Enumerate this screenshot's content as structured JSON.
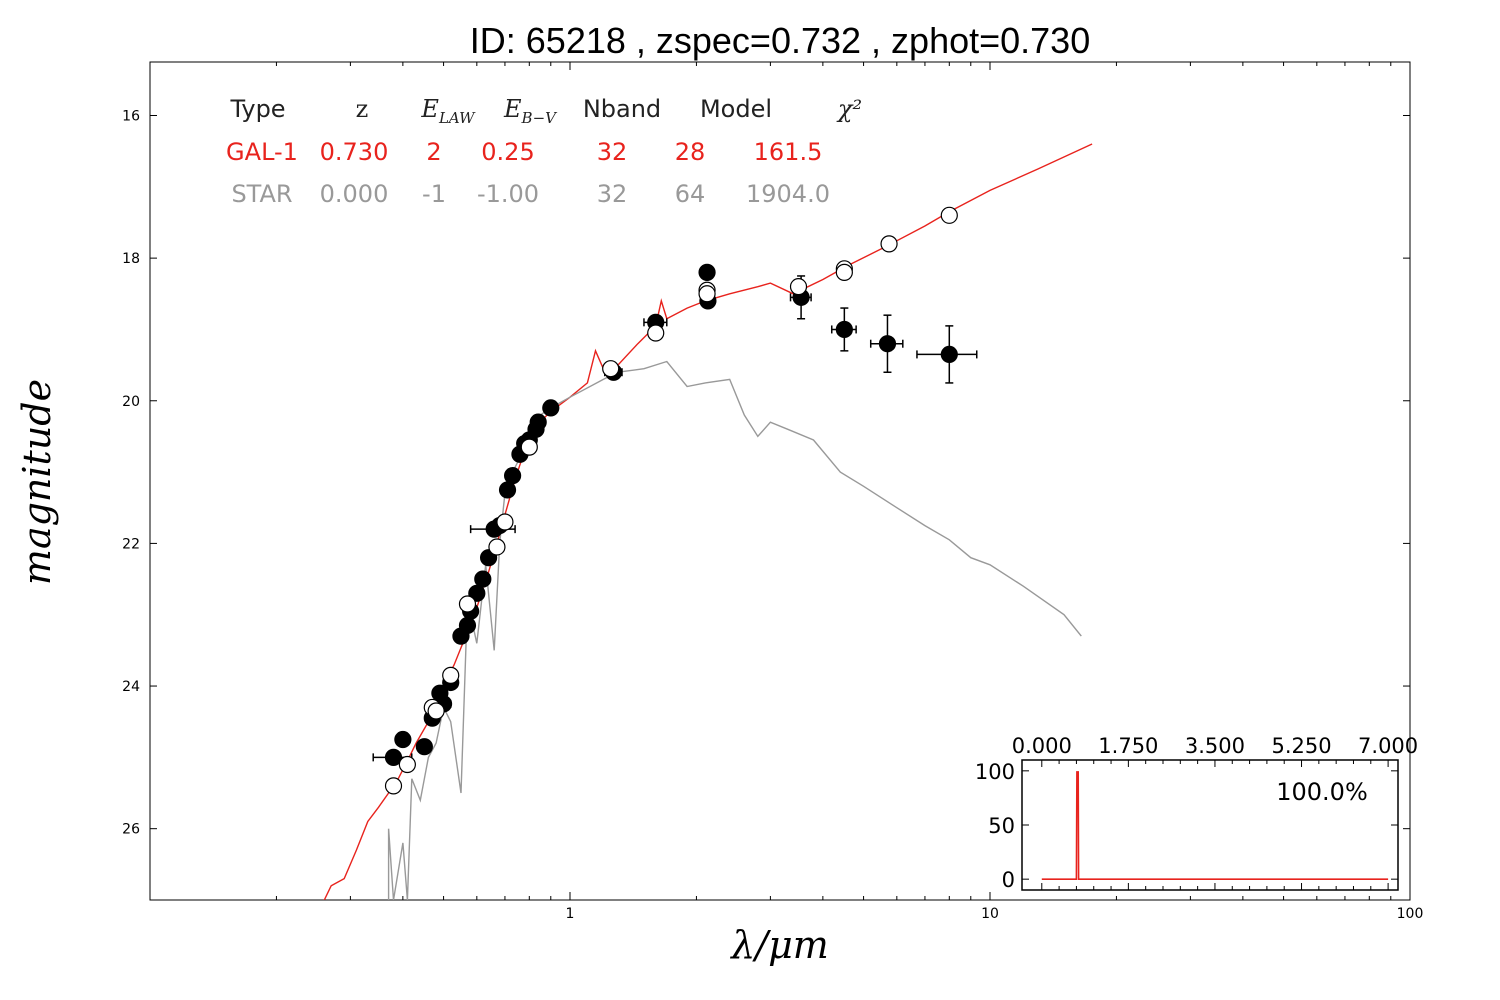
{
  "chart_data": {
    "title": "ID:  65218 , zspec=0.732 , zphot=0.730",
    "type": "scatter",
    "xlabel": "λ/μm",
    "ylabel": "magnitude",
    "x_scale": "log",
    "xlim": [
      0.1,
      100
    ],
    "ylim": [
      27,
      15.25
    ],
    "x_ticks": [
      {
        "value": 1,
        "label": "1"
      },
      {
        "value": 10,
        "label": "10"
      },
      {
        "value": 100,
        "label": "100"
      }
    ],
    "y_ticks": [
      {
        "value": 16,
        "label": "16"
      },
      {
        "value": 18,
        "label": "18"
      },
      {
        "value": 20,
        "label": "20"
      },
      {
        "value": 22,
        "label": "22"
      },
      {
        "value": 24,
        "label": "24"
      },
      {
        "value": 26,
        "label": "26"
      }
    ],
    "fit_table": {
      "headers": [
        "Type",
        "z",
        "E_LAW",
        "E_B−V",
        "Nband",
        "Model",
        "χ²"
      ],
      "rows": [
        {
          "cells": [
            "GAL-1",
            "0.730",
            "2",
            "0.25",
            "32",
            "28",
            "161.5"
          ],
          "color": "#e8231d"
        },
        {
          "cells": [
            "STAR",
            "0.000",
            "-1",
            "-1.00",
            "32",
            "64",
            "1904.0"
          ],
          "color": "#999999"
        }
      ]
    },
    "series": [
      {
        "name": "GAL-1",
        "kind": "line",
        "color": "#e8231d",
        "points": [
          [
            0.26,
            27.0
          ],
          [
            0.27,
            26.8
          ],
          [
            0.29,
            26.7
          ],
          [
            0.31,
            26.3
          ],
          [
            0.33,
            25.9
          ],
          [
            0.35,
            25.7
          ],
          [
            0.37,
            25.5
          ],
          [
            0.39,
            25.3
          ],
          [
            0.41,
            25.05
          ],
          [
            0.43,
            24.8
          ],
          [
            0.46,
            24.5
          ],
          [
            0.48,
            24.2
          ],
          [
            0.5,
            24.0
          ],
          [
            0.53,
            23.7
          ],
          [
            0.56,
            23.35
          ],
          [
            0.6,
            22.9
          ],
          [
            0.64,
            22.4
          ],
          [
            0.67,
            22.0
          ],
          [
            0.7,
            21.6
          ],
          [
            0.74,
            21.1
          ],
          [
            0.78,
            20.7
          ],
          [
            0.83,
            20.35
          ],
          [
            0.9,
            20.15
          ],
          [
            1.0,
            19.95
          ],
          [
            1.1,
            19.75
          ],
          [
            1.15,
            19.3
          ],
          [
            1.2,
            19.55
          ],
          [
            1.3,
            19.5
          ],
          [
            1.45,
            19.2
          ],
          [
            1.6,
            18.95
          ],
          [
            1.65,
            18.6
          ],
          [
            1.7,
            18.85
          ],
          [
            1.9,
            18.7
          ],
          [
            2.1,
            18.6
          ],
          [
            2.4,
            18.5
          ],
          [
            2.8,
            18.4
          ],
          [
            3.0,
            18.35
          ],
          [
            3.4,
            18.5
          ],
          [
            4.0,
            18.3
          ],
          [
            4.6,
            18.1
          ],
          [
            5.6,
            17.85
          ],
          [
            7.0,
            17.55
          ],
          [
            8.0,
            17.35
          ],
          [
            10,
            17.05
          ],
          [
            13,
            16.75
          ],
          [
            17.5,
            16.4
          ]
        ]
      },
      {
        "name": "STAR",
        "kind": "line",
        "color": "#999999",
        "points": [
          [
            0.37,
            27.0
          ],
          [
            0.37,
            26.0
          ],
          [
            0.38,
            27.0
          ],
          [
            0.4,
            26.2
          ],
          [
            0.41,
            27.0
          ],
          [
            0.42,
            25.3
          ],
          [
            0.44,
            25.6
          ],
          [
            0.46,
            25.0
          ],
          [
            0.48,
            24.8
          ],
          [
            0.5,
            24.3
          ],
          [
            0.52,
            24.5
          ],
          [
            0.55,
            25.5
          ],
          [
            0.57,
            22.8
          ],
          [
            0.6,
            23.4
          ],
          [
            0.63,
            22.3
          ],
          [
            0.66,
            23.5
          ],
          [
            0.68,
            22.0
          ],
          [
            0.7,
            21.3
          ],
          [
            0.73,
            21.0
          ],
          [
            0.76,
            20.8
          ],
          [
            0.8,
            20.6
          ],
          [
            0.85,
            20.2
          ],
          [
            0.9,
            20.1
          ],
          [
            1.0,
            19.95
          ],
          [
            1.2,
            19.7
          ],
          [
            1.3,
            19.6
          ],
          [
            1.5,
            19.55
          ],
          [
            1.7,
            19.45
          ],
          [
            1.9,
            19.8
          ],
          [
            2.1,
            19.75
          ],
          [
            2.4,
            19.7
          ],
          [
            2.6,
            20.2
          ],
          [
            2.8,
            20.5
          ],
          [
            3.0,
            20.3
          ],
          [
            3.3,
            20.4
          ],
          [
            3.8,
            20.55
          ],
          [
            4.4,
            21.0
          ],
          [
            5.0,
            21.2
          ],
          [
            6.0,
            21.5
          ],
          [
            7.0,
            21.75
          ],
          [
            8.0,
            21.95
          ],
          [
            9.0,
            22.2
          ],
          [
            10,
            22.3
          ],
          [
            12,
            22.6
          ],
          [
            15,
            23.0
          ],
          [
            16.5,
            23.3
          ]
        ]
      },
      {
        "name": "filled",
        "kind": "points",
        "fill": "#000000",
        "points": [
          [
            0.38,
            25.0,
            0.04,
            0.08
          ],
          [
            0.4,
            24.75,
            0.0,
            0.08
          ],
          [
            0.45,
            24.85,
            0.0,
            0.08
          ],
          [
            0.47,
            24.45,
            0.0,
            0.08
          ],
          [
            0.5,
            24.25,
            0.02,
            0.08
          ],
          [
            0.49,
            24.1,
            0.0,
            0.08
          ],
          [
            0.52,
            23.95,
            0.0,
            0.08
          ],
          [
            0.55,
            23.3,
            0.0,
            0.08
          ],
          [
            0.57,
            23.15,
            0.02,
            0.08
          ],
          [
            0.58,
            22.95,
            0.0,
            0.08
          ],
          [
            0.6,
            22.7,
            0.0,
            0.08
          ],
          [
            0.62,
            22.5,
            0.0,
            0.08
          ],
          [
            0.64,
            22.2,
            0.0,
            0.08
          ],
          [
            0.66,
            21.8,
            0.08,
            0.08
          ],
          [
            0.68,
            21.75,
            0.0,
            0.08
          ],
          [
            0.71,
            21.25,
            0.0,
            0.08
          ],
          [
            0.73,
            21.05,
            0.0,
            0.08
          ],
          [
            0.76,
            20.75,
            0.0,
            0.08
          ],
          [
            0.78,
            20.6,
            0.0,
            0.08
          ],
          [
            0.8,
            20.55,
            0.0,
            0.08
          ],
          [
            0.83,
            20.4,
            0.0,
            0.08
          ],
          [
            0.84,
            20.3,
            0.0,
            0.08
          ],
          [
            0.9,
            20.1,
            0.03,
            0.08
          ],
          [
            1.27,
            19.6,
            0.06,
            0.08
          ],
          [
            1.6,
            18.9,
            0.1,
            0.08
          ],
          [
            2.12,
            18.2,
            0.0,
            0.08
          ],
          [
            2.13,
            18.6,
            0.0,
            0.08
          ],
          [
            3.55,
            18.55,
            0.2,
            0.3
          ],
          [
            4.5,
            19.0,
            0.3,
            0.3
          ],
          [
            5.7,
            19.2,
            0.5,
            0.4
          ],
          [
            8.0,
            19.35,
            1.3,
            0.4
          ]
        ]
      },
      {
        "name": "open",
        "kind": "points",
        "fill": "#ffffff",
        "points": [
          [
            0.38,
            25.4
          ],
          [
            0.41,
            25.1
          ],
          [
            0.47,
            24.3
          ],
          [
            0.48,
            24.35
          ],
          [
            0.52,
            23.85
          ],
          [
            0.57,
            22.85
          ],
          [
            0.67,
            22.05
          ],
          [
            0.7,
            21.7
          ],
          [
            0.8,
            20.65
          ],
          [
            1.25,
            19.55
          ],
          [
            1.6,
            19.05
          ],
          [
            2.12,
            18.45
          ],
          [
            2.12,
            18.5
          ],
          [
            3.5,
            18.4
          ],
          [
            4.5,
            18.15
          ],
          [
            4.5,
            18.2
          ],
          [
            5.75,
            17.8
          ],
          [
            8.0,
            17.4
          ]
        ]
      }
    ],
    "inset": {
      "type": "line",
      "xlim": [
        -0.4,
        7.2
      ],
      "ylim": [
        -10,
        110
      ],
      "x_ticks": [
        {
          "value": 0,
          "label": "0.000"
        },
        {
          "value": 1.75,
          "label": "1.750"
        },
        {
          "value": 3.5,
          "label": "3.500"
        },
        {
          "value": 5.25,
          "label": "5.250"
        },
        {
          "value": 7,
          "label": "7.000"
        }
      ],
      "y_ticks": [
        {
          "value": 0,
          "label": "0"
        },
        {
          "value": 50,
          "label": "50"
        },
        {
          "value": 100,
          "label": "100"
        }
      ],
      "annotation": "100.0%",
      "color": "#e8231d",
      "points": [
        [
          0,
          0
        ],
        [
          0.7,
          0
        ],
        [
          0.71,
          99
        ],
        [
          0.735,
          99
        ],
        [
          0.745,
          0
        ],
        [
          7,
          0
        ]
      ]
    }
  }
}
